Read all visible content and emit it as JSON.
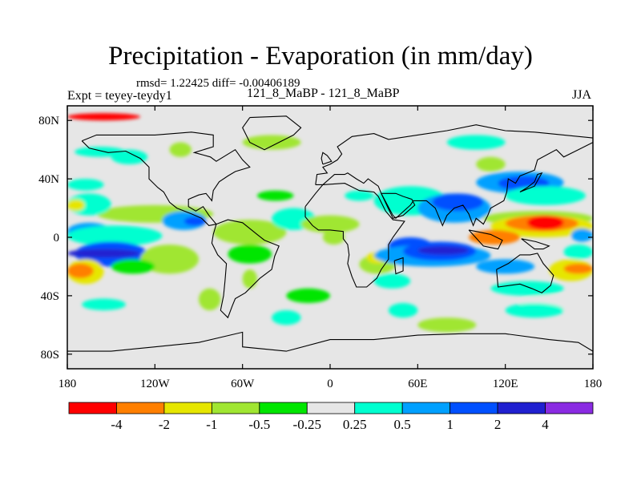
{
  "title": "Precipitation - Evaporation (in mm/day)",
  "stats_text": "rmsd= 1.22425  diff= -0.00406189",
  "experiment_text": "Expt = teyey-teydy1",
  "subtitle": "121_8_MaBP - 121_8_MaBP",
  "season": "JJA",
  "map": {
    "projection": "cylindrical-equidistant",
    "lon_range": [
      -180,
      180
    ],
    "lat_range": [
      -90,
      90
    ],
    "land_outline_color": "#000000",
    "background_color": "#e6e6e6"
  },
  "x_ticks": [
    {
      "value": -180,
      "label": "180"
    },
    {
      "value": -120,
      "label": "120W"
    },
    {
      "value": -60,
      "label": "60W"
    },
    {
      "value": 0,
      "label": "0"
    },
    {
      "value": 60,
      "label": "60E"
    },
    {
      "value": 120,
      "label": "120E"
    },
    {
      "value": 180,
      "label": "180"
    }
  ],
  "y_ticks": [
    {
      "value": 80,
      "label": "80N"
    },
    {
      "value": 40,
      "label": "40N"
    },
    {
      "value": 0,
      "label": "0"
    },
    {
      "value": -40,
      "label": "40S"
    },
    {
      "value": -80,
      "label": "80S"
    }
  ],
  "colorbar": {
    "colors": [
      "#ff0000",
      "#ff7f00",
      "#e6e600",
      "#a0e632",
      "#00e600",
      "#e6e6e6",
      "#00ffd0",
      "#00a0ff",
      "#0050ff",
      "#2020d0",
      "#8a2be2"
    ],
    "labels": [
      "-4",
      "-2",
      "-1",
      "-0.5",
      "-0.25",
      "0.25",
      "0.5",
      "1",
      "2",
      "4"
    ]
  },
  "chart_data": {
    "type": "heatmap",
    "title": "Precipitation - Evaporation (in mm/day)",
    "variable": "P-E difference",
    "units": "mm/day",
    "season": "JJA",
    "levels": [
      -4,
      -2,
      -1,
      -0.5,
      -0.25,
      0.25,
      0.5,
      1,
      2,
      4
    ],
    "xlim": [
      -180,
      180
    ],
    "ylim": [
      -90,
      90
    ],
    "rmsd": 1.22425,
    "diff": -0.00406189,
    "features": [
      {
        "lon": 145,
        "lat": 12,
        "value": -4
      },
      {
        "lon": 120,
        "lat": 2,
        "value": -2
      },
      {
        "lon": 85,
        "lat": -8,
        "value": 4
      },
      {
        "lon": 60,
        "lat": -6,
        "value": 2
      },
      {
        "lon": 100,
        "lat": 25,
        "value": 1
      },
      {
        "lon": 155,
        "lat": 35,
        "value": 0.5
      },
      {
        "lon": -175,
        "lat": 3,
        "value": 0.5
      },
      {
        "lon": -150,
        "lat": 4,
        "value": 1
      },
      {
        "lon": -170,
        "lat": -8,
        "value": 2
      },
      {
        "lon": -170,
        "lat": -22,
        "value": -2
      },
      {
        "lon": -120,
        "lat": -12,
        "value": -0.5
      },
      {
        "lon": -100,
        "lat": 10,
        "value": 1
      },
      {
        "lon": 170,
        "lat": -20,
        "value": -1
      },
      {
        "lon": 165,
        "lat": -8,
        "value": 0.5
      },
      {
        "lon": 30,
        "lat": -20,
        "value": -0.5
      },
      {
        "lon": -40,
        "lat": 5,
        "value": -0.5
      }
    ]
  }
}
